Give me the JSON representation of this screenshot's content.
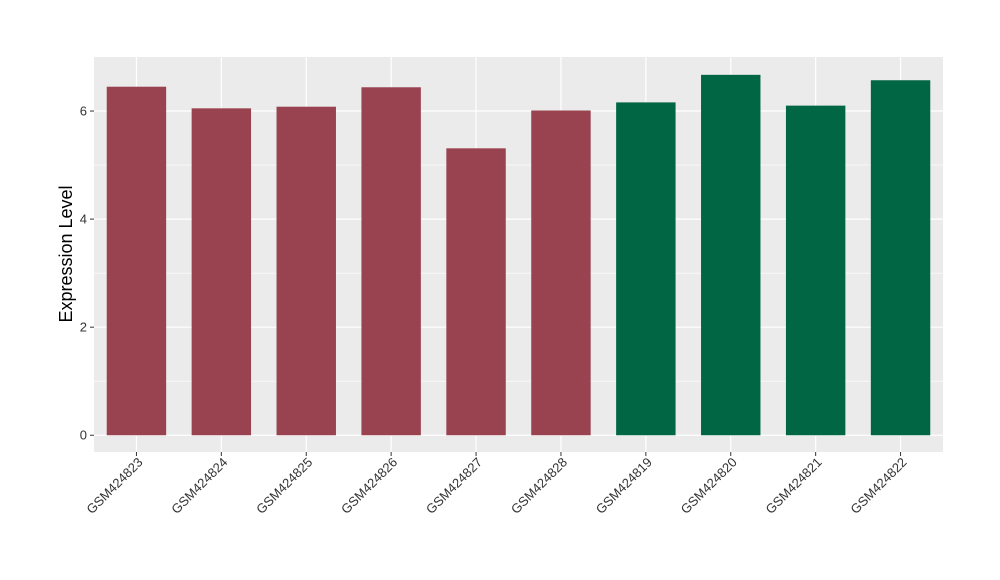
{
  "chart_data": {
    "type": "bar",
    "ylabel": "Expression Level",
    "categories": [
      "GSM424823",
      "GSM424824",
      "GSM424825",
      "GSM424826",
      "GSM424827",
      "GSM424828",
      "GSM424819",
      "GSM424820",
      "GSM424821",
      "GSM424822"
    ],
    "values": [
      6.45,
      6.05,
      6.08,
      6.44,
      5.31,
      6.01,
      6.16,
      6.67,
      6.1,
      6.57
    ],
    "colors": [
      "#9a4350",
      "#9a4350",
      "#9a4350",
      "#9a4350",
      "#9a4350",
      "#9a4350",
      "#006643",
      "#006643",
      "#006643",
      "#006643"
    ],
    "ylim": [
      -0.31,
      7.0
    ],
    "yticks": [
      0,
      2,
      4,
      6
    ],
    "grid": true,
    "panel_background": "#ebebeb",
    "grid_color": "#ffffff"
  }
}
